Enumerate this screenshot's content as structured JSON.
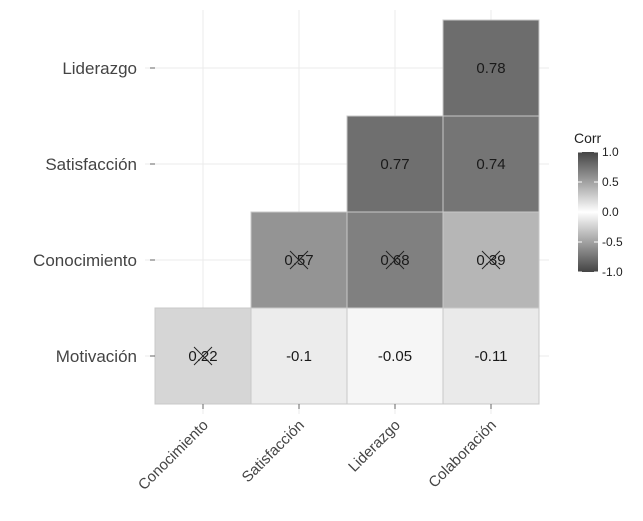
{
  "chart_data": {
    "type": "heatmap",
    "x_categories": [
      "Conocimiento",
      "Satisfacción",
      "Liderazgo",
      "Colaboración"
    ],
    "y_categories": [
      "Liderazgo",
      "Satisfacción",
      "Conocimiento",
      "Motivación"
    ],
    "cells": [
      {
        "x": "Colaboración",
        "y": "Liderazgo",
        "value": 0.78,
        "label": "0.78",
        "insignificant": false
      },
      {
        "x": "Liderazgo",
        "y": "Satisfacción",
        "value": 0.77,
        "label": "0.77",
        "insignificant": false
      },
      {
        "x": "Colaboración",
        "y": "Satisfacción",
        "value": 0.74,
        "label": "0.74",
        "insignificant": false
      },
      {
        "x": "Satisfacción",
        "y": "Conocimiento",
        "value": 0.57,
        "label": "0.57",
        "insignificant": true
      },
      {
        "x": "Liderazgo",
        "y": "Conocimiento",
        "value": 0.68,
        "label": "0.68",
        "insignificant": true
      },
      {
        "x": "Colaboración",
        "y": "Conocimiento",
        "value": 0.39,
        "label": "0.39",
        "insignificant": true
      },
      {
        "x": "Conocimiento",
        "y": "Motivación",
        "value": 0.22,
        "label": "0.22",
        "insignificant": true
      },
      {
        "x": "Satisfacción",
        "y": "Motivación",
        "value": -0.1,
        "label": "-0.1",
        "insignificant": false
      },
      {
        "x": "Liderazgo",
        "y": "Motivación",
        "value": -0.05,
        "label": "-0.05",
        "insignificant": false
      },
      {
        "x": "Colaboración",
        "y": "Motivación",
        "value": -0.11,
        "label": "-0.11",
        "insignificant": false
      }
    ],
    "legend": {
      "title": "Corr",
      "ticks": [
        "1.0",
        "0.5",
        "0.0",
        "-0.5",
        "-1.0"
      ],
      "range": [
        -1,
        1
      ],
      "colors": {
        "low": "#444444",
        "mid": "#ffffff",
        "high": "#444444"
      },
      "placement": "right"
    },
    "grid": true
  }
}
